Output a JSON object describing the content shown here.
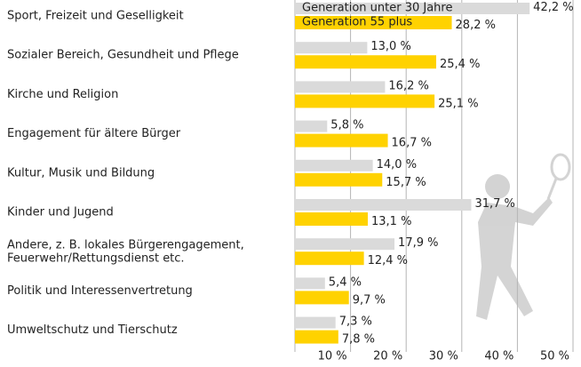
{
  "chart_data": {
    "type": "hbar",
    "categories": [
      "Sport, Freizeit und Geselligkeit",
      "Sozialer Bereich, Gesundheit und Pflege",
      "Kirche und Religion",
      "Engagement für ältere Bürger",
      "Kultur, Musik und Bildung",
      "Kinder und Jugend",
      "Andere, z. B. lokales Bürgerengagement,\nFeuerwehr/Rettungsdienst etc.",
      "Politik und Interessenvertretung",
      "Umweltschutz und Tierschutz"
    ],
    "series": [
      {
        "name": "Generation unter 30 Jahre",
        "color": "#dadada",
        "values": [
          42.2,
          13.0,
          16.2,
          5.8,
          14.0,
          31.7,
          17.9,
          5.4,
          7.3
        ],
        "value_labels": [
          "42,2 %",
          "13,0 %",
          "16,2 %",
          "5,8 %",
          "14,0 %",
          "31,7 %",
          "17,9 %",
          "5,4 %",
          "7,3 %"
        ]
      },
      {
        "name": "Generation 55 plus",
        "color": "#ffd200",
        "values": [
          28.2,
          25.4,
          25.1,
          16.7,
          15.7,
          13.1,
          12.4,
          9.7,
          7.8
        ],
        "value_labels": [
          "28,2 %",
          "25,4 %",
          "25,1 %",
          "16,7 %",
          "15,7 %",
          "13,1 %",
          "12,4 %",
          "9,7 %",
          "7,8 %"
        ]
      }
    ],
    "xlim": [
      0,
      50
    ],
    "xticks": [
      {
        "value": 10,
        "label": "10 %"
      },
      {
        "value": 20,
        "label": "20 %"
      },
      {
        "value": 30,
        "label": "30 %"
      },
      {
        "value": 40,
        "label": "40 %"
      },
      {
        "value": 50,
        "label": "50 %"
      }
    ],
    "grid": true
  }
}
